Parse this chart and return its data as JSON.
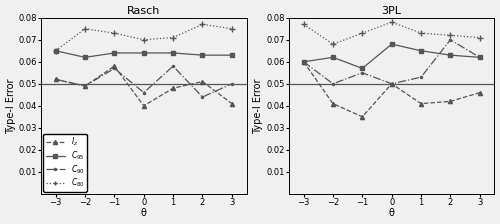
{
  "theta": [
    -3,
    -2,
    -1,
    0,
    1,
    2,
    3
  ],
  "rasch": {
    "Iz": [
      0.052,
      0.049,
      0.058,
      0.04,
      0.048,
      0.051,
      0.041
    ],
    "C95": [
      0.065,
      0.062,
      0.064,
      0.064,
      0.064,
      0.063,
      0.063
    ],
    "C90": [
      0.052,
      0.049,
      0.057,
      0.046,
      0.058,
      0.044,
      0.05
    ],
    "C80": [
      0.065,
      0.075,
      0.073,
      0.07,
      0.071,
      0.077,
      0.075
    ]
  },
  "pl3": {
    "Iz": [
      0.06,
      0.041,
      0.035,
      0.05,
      0.041,
      0.042,
      0.046
    ],
    "C95": [
      0.06,
      0.062,
      0.057,
      0.068,
      0.065,
      0.063,
      0.062
    ],
    "C90": [
      0.06,
      0.05,
      0.055,
      0.05,
      0.053,
      0.07,
      0.062
    ],
    "C80": [
      0.077,
      0.068,
      0.073,
      0.078,
      0.073,
      0.072,
      0.071
    ]
  },
  "hline": 0.05,
  "ylim": [
    0.0,
    0.08
  ],
  "yticks": [
    0.01,
    0.02,
    0.03,
    0.04,
    0.05,
    0.06,
    0.07,
    0.08
  ],
  "xticks": [
    -3,
    -2,
    -1,
    0,
    1,
    2,
    3
  ],
  "xlabel": "θ",
  "ylabel": "Type-I Error",
  "title_rasch": "Rasch",
  "title_3pl": "3PL",
  "legend_labels": [
    "$I_z$",
    "$C_{95}$",
    "$C_{90}$",
    "$C_{80}$"
  ],
  "line_color": "#555555",
  "bg_color": "#f0f0f0"
}
